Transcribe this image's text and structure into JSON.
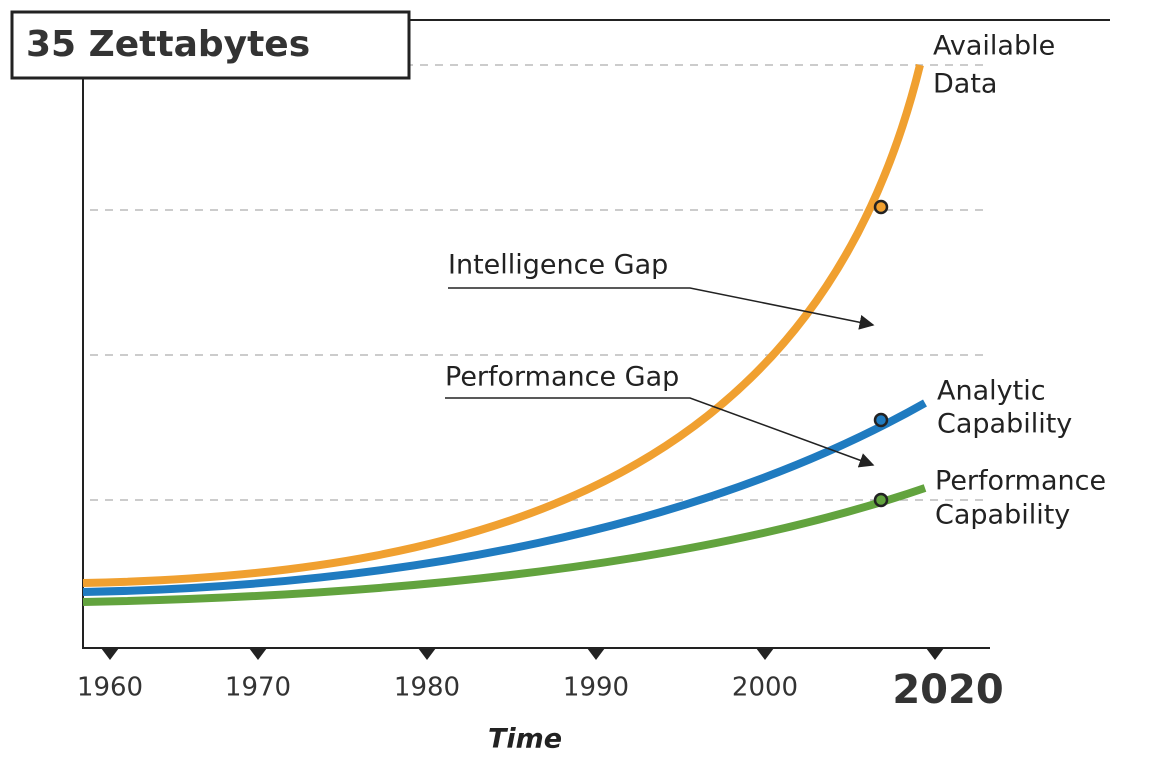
{
  "title": "35 Zettabytes",
  "x_axis": {
    "label": "Time",
    "ticks": [
      "1960",
      "1970",
      "1980",
      "1990",
      "2000",
      "2020"
    ]
  },
  "curves": [
    {
      "label": [
        "Available",
        "Data"
      ]
    },
    {
      "label": [
        "Analytic",
        "Capability"
      ]
    },
    {
      "label": [
        "Performance",
        "Capability"
      ]
    }
  ],
  "annotations": [
    "Intelligence Gap",
    "Performance Gap"
  ]
}
